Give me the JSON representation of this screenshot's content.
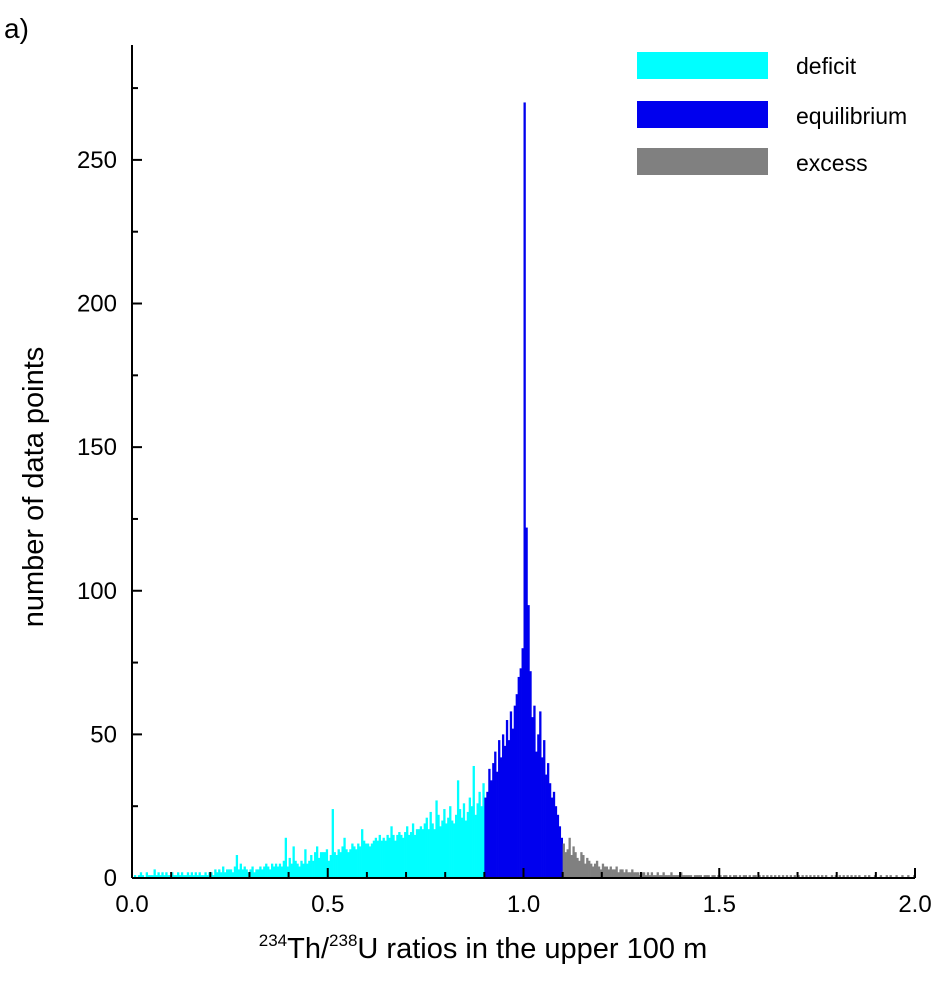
{
  "chart_data": {
    "type": "bar",
    "panel_label": "a)",
    "xlabel": {
      "sup1": "234",
      "part1": "Th/",
      "sup2": "238",
      "part2": "U ratios in the upper 100 m"
    },
    "ylabel": "number of data points",
    "xlim": [
      0.0,
      2.0
    ],
    "ylim": [
      0,
      290
    ],
    "x_ticks": [
      {
        "value": 0.0,
        "label": "0.0"
      },
      {
        "value": 0.5,
        "label": "0.5"
      },
      {
        "value": 1.0,
        "label": "1.0"
      },
      {
        "value": 1.5,
        "label": "1.5"
      },
      {
        "value": 2.0,
        "label": "2.0"
      }
    ],
    "x_minor_step": 0.1,
    "y_ticks": [
      {
        "value": 0,
        "label": "0"
      },
      {
        "value": 50,
        "label": "50"
      },
      {
        "value": 100,
        "label": "100"
      },
      {
        "value": 150,
        "label": "150"
      },
      {
        "value": 200,
        "label": "200"
      },
      {
        "value": 250,
        "label": "250"
      }
    ],
    "y_minor_step": 25,
    "grid": false,
    "legend_position": "top-right",
    "bin_width": 0.005,
    "series": [
      {
        "name": "deficit",
        "color": "#00ffff",
        "x_start": 0.0,
        "values": [
          0,
          1,
          0,
          1,
          2,
          1,
          0,
          2,
          1,
          1,
          1,
          3,
          1,
          2,
          1,
          2,
          1,
          2,
          1,
          1,
          2,
          1,
          1,
          2,
          1,
          2,
          1,
          1,
          2,
          1,
          2,
          1,
          2,
          1,
          2,
          1,
          1,
          2,
          1,
          2,
          2,
          1,
          3,
          2,
          3,
          2,
          4,
          2,
          3,
          3,
          3,
          2,
          4,
          8,
          3,
          5,
          3,
          4,
          3,
          2,
          3,
          4,
          2,
          3,
          3,
          4,
          3,
          4,
          5,
          4,
          3,
          5,
          4,
          5,
          4,
          5,
          4,
          6,
          14,
          4,
          7,
          5,
          11,
          6,
          5,
          4,
          6,
          5,
          10,
          5,
          6,
          8,
          6,
          9,
          11,
          7,
          9,
          9,
          9,
          10,
          6,
          8,
          24,
          9,
          8,
          10,
          9,
          11,
          14,
          10,
          9,
          10,
          12,
          11,
          10,
          12,
          11,
          17,
          13,
          12,
          12,
          11,
          12,
          13,
          14,
          13,
          15,
          13,
          14,
          13,
          15,
          14,
          18,
          15,
          13,
          15,
          16,
          15,
          14,
          16,
          18,
          15,
          16,
          19,
          15,
          17,
          17,
          18,
          17,
          19,
          21,
          17,
          23,
          19,
          17,
          27,
          22,
          18,
          20,
          24,
          19,
          21,
          25,
          20,
          19,
          22,
          34,
          24,
          21,
          26,
          20,
          23,
          28,
          25,
          39,
          22,
          26,
          30,
          25,
          33
        ]
      },
      {
        "name": "equilibrium",
        "color": "#0000ee",
        "x_start": 0.9,
        "values": [
          28,
          30,
          38,
          34,
          40,
          44,
          37,
          48,
          42,
          50,
          46,
          55,
          48,
          58,
          52,
          60,
          64,
          70,
          73,
          80,
          270,
          122,
          95,
          72,
          56,
          60,
          44,
          50,
          58,
          42,
          48,
          36,
          40,
          33,
          28,
          30,
          25,
          22,
          18,
          14
        ]
      },
      {
        "name": "excess",
        "color": "#808080",
        "x_start": 1.1,
        "values": [
          12,
          9,
          10,
          14,
          8,
          11,
          9,
          7,
          6,
          9,
          8,
          5,
          7,
          6,
          5,
          4,
          5,
          6,
          4,
          3,
          5,
          4,
          4,
          3,
          4,
          3,
          3,
          4,
          2,
          3,
          3,
          2,
          3,
          2,
          2,
          3,
          2,
          2,
          2,
          1,
          2,
          2,
          1,
          2,
          1,
          2,
          1,
          1,
          2,
          1,
          1,
          2,
          1,
          1,
          1,
          2,
          1,
          1,
          1,
          1,
          2,
          1,
          1,
          1,
          1,
          1,
          0,
          1,
          1,
          1,
          1,
          0,
          1,
          1,
          1,
          0,
          1,
          1,
          0,
          1,
          1,
          0,
          1,
          1,
          0,
          1,
          0,
          1,
          1,
          0,
          1,
          0,
          1,
          1,
          0,
          1,
          0,
          1,
          1,
          0,
          1,
          0,
          1,
          0,
          1,
          0,
          1,
          0,
          1,
          0,
          1,
          0,
          1,
          0,
          1,
          0,
          1,
          0,
          1,
          0,
          1,
          0,
          1,
          0,
          1,
          0,
          1,
          0,
          1,
          0,
          1,
          0,
          1,
          0,
          1,
          0,
          0,
          1,
          0,
          1,
          0,
          1,
          0,
          1,
          0,
          1,
          0,
          1,
          0,
          1,
          0,
          1,
          0,
          0,
          1,
          0,
          1,
          0,
          0,
          1,
          0,
          0,
          1,
          0,
          0,
          1,
          0,
          1,
          0,
          0,
          1,
          0,
          0,
          1,
          0,
          0,
          1,
          0,
          0,
          1
        ]
      }
    ]
  }
}
